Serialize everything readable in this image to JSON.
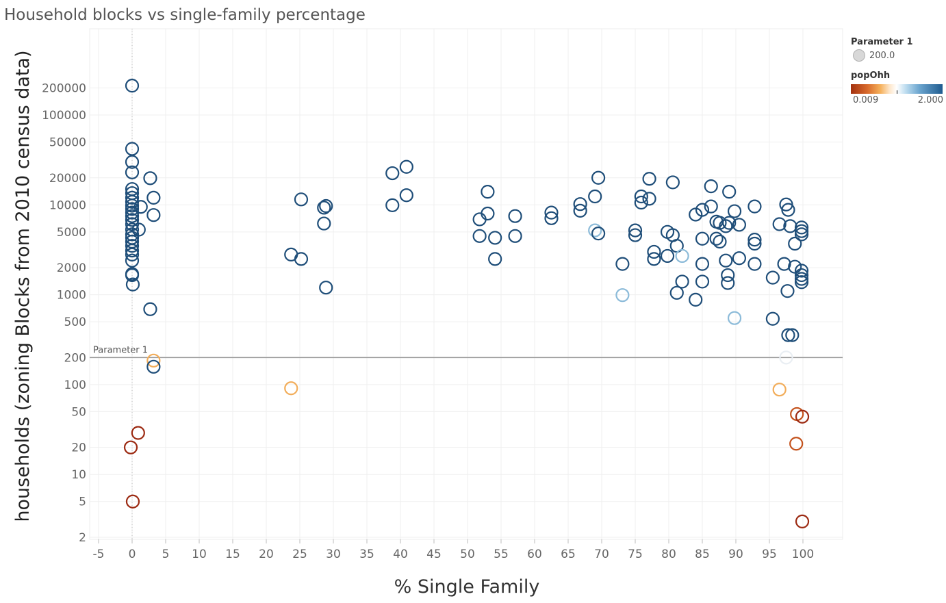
{
  "title": "Household blocks vs single-family percentage",
  "legend": {
    "size_title": "Parameter 1",
    "size_value": "200.0",
    "color_title": "popOhh",
    "color_min": "0.009",
    "color_max": "2.000"
  },
  "chart_data": {
    "type": "scatter",
    "title": "Household blocks vs single-family percentage",
    "xlabel": "% Single Family",
    "ylabel": "households (zoning Blocks from 2010 census data)",
    "xlim": [
      -6,
      105
    ],
    "ylim": [
      1.3,
      300000
    ],
    "y_scale": "log",
    "x_ticks": [
      -5,
      0,
      5,
      10,
      15,
      20,
      25,
      30,
      35,
      40,
      45,
      50,
      55,
      60,
      65,
      70,
      75,
      80,
      85,
      90,
      95,
      100
    ],
    "y_ticks": [
      2,
      5,
      10,
      20,
      50,
      100,
      200,
      500,
      1000,
      2000,
      5000,
      10000,
      20000,
      50000,
      100000,
      200000
    ],
    "grid": true,
    "reference_line": {
      "label": "Parameter 1",
      "value": 200
    },
    "zero_line": 0,
    "legend_position": "top-right",
    "color_palette": {
      "dark_blue": "#1f4e79",
      "light_blue": "#8cbbd9",
      "pale": "#e9eef3",
      "orange": "#f2ad5a",
      "dark_orange": "#c4521c",
      "dark_red": "#9c2a12"
    },
    "points": [
      {
        "x": 0,
        "y": 212000,
        "c": "dark_blue"
      },
      {
        "x": 0,
        "y": 42000,
        "c": "dark_blue"
      },
      {
        "x": 0,
        "y": 30000,
        "c": "dark_blue"
      },
      {
        "x": 0,
        "y": 23000,
        "c": "dark_blue"
      },
      {
        "x": 0,
        "y": 15000,
        "c": "dark_blue"
      },
      {
        "x": 0,
        "y": 13500,
        "c": "dark_blue"
      },
      {
        "x": 0,
        "y": 12000,
        "c": "dark_blue"
      },
      {
        "x": 0,
        "y": 10800,
        "c": "dark_blue"
      },
      {
        "x": 0,
        "y": 9800,
        "c": "dark_blue"
      },
      {
        "x": 0,
        "y": 9000,
        "c": "dark_blue"
      },
      {
        "x": 0,
        "y": 8200,
        "c": "dark_blue"
      },
      {
        "x": 0,
        "y": 7500,
        "c": "dark_blue"
      },
      {
        "x": 0,
        "y": 6800,
        "c": "dark_blue"
      },
      {
        "x": 0,
        "y": 6100,
        "c": "dark_blue"
      },
      {
        "x": 0,
        "y": 5300,
        "c": "dark_blue"
      },
      {
        "x": 0,
        "y": 4700,
        "c": "dark_blue"
      },
      {
        "x": 0,
        "y": 4300,
        "c": "dark_blue"
      },
      {
        "x": 0,
        "y": 3900,
        "c": "dark_blue"
      },
      {
        "x": 0,
        "y": 3500,
        "c": "dark_blue"
      },
      {
        "x": 0,
        "y": 3100,
        "c": "dark_blue"
      },
      {
        "x": 0,
        "y": 2800,
        "c": "dark_blue"
      },
      {
        "x": 0,
        "y": 2400,
        "c": "dark_blue"
      },
      {
        "x": 0,
        "y": 1700,
        "c": "dark_blue"
      },
      {
        "x": 0,
        "y": 1650,
        "c": "dark_blue"
      },
      {
        "x": 0.1,
        "y": 1300,
        "c": "dark_blue"
      },
      {
        "x": 1.0,
        "y": 5300,
        "c": "dark_blue"
      },
      {
        "x": 1.3,
        "y": 9500,
        "c": "dark_blue"
      },
      {
        "x": 2.7,
        "y": 19800,
        "c": "dark_blue"
      },
      {
        "x": 3.2,
        "y": 12000,
        "c": "dark_blue"
      },
      {
        "x": 3.2,
        "y": 7700,
        "c": "dark_blue"
      },
      {
        "x": 2.7,
        "y": 690,
        "c": "dark_blue"
      },
      {
        "x": 3.2,
        "y": 185,
        "c": "orange"
      },
      {
        "x": 3.2,
        "y": 158,
        "c": "dark_blue"
      },
      {
        "x": 0.9,
        "y": 29,
        "c": "dark_red"
      },
      {
        "x": -0.2,
        "y": 20,
        "c": "dark_red"
      },
      {
        "x": 0.1,
        "y": 5,
        "c": "dark_red"
      },
      {
        "x": 25.2,
        "y": 11500,
        "c": "dark_blue"
      },
      {
        "x": 23.7,
        "y": 2800,
        "c": "dark_blue"
      },
      {
        "x": 25.2,
        "y": 2500,
        "c": "dark_blue"
      },
      {
        "x": 23.7,
        "y": 91,
        "c": "orange"
      },
      {
        "x": 28.6,
        "y": 9300,
        "c": "dark_blue"
      },
      {
        "x": 28.9,
        "y": 9700,
        "c": "dark_blue"
      },
      {
        "x": 28.6,
        "y": 6200,
        "c": "dark_blue"
      },
      {
        "x": 28.9,
        "y": 1200,
        "c": "dark_blue"
      },
      {
        "x": 38.8,
        "y": 22500,
        "c": "dark_blue"
      },
      {
        "x": 40.9,
        "y": 26500,
        "c": "dark_blue"
      },
      {
        "x": 38.8,
        "y": 9900,
        "c": "dark_blue"
      },
      {
        "x": 40.9,
        "y": 12800,
        "c": "dark_blue"
      },
      {
        "x": 53.0,
        "y": 14000,
        "c": "dark_blue"
      },
      {
        "x": 53.0,
        "y": 8000,
        "c": "dark_blue"
      },
      {
        "x": 51.8,
        "y": 6900,
        "c": "dark_blue"
      },
      {
        "x": 51.8,
        "y": 4500,
        "c": "dark_blue"
      },
      {
        "x": 54.1,
        "y": 4300,
        "c": "dark_blue"
      },
      {
        "x": 54.1,
        "y": 2500,
        "c": "dark_blue"
      },
      {
        "x": 57.1,
        "y": 7500,
        "c": "dark_blue"
      },
      {
        "x": 57.1,
        "y": 4500,
        "c": "dark_blue"
      },
      {
        "x": 62.5,
        "y": 8200,
        "c": "dark_blue"
      },
      {
        "x": 62.5,
        "y": 7100,
        "c": "dark_blue"
      },
      {
        "x": 66.8,
        "y": 10200,
        "c": "dark_blue"
      },
      {
        "x": 66.8,
        "y": 8600,
        "c": "dark_blue"
      },
      {
        "x": 69.0,
        "y": 12400,
        "c": "dark_blue"
      },
      {
        "x": 69.5,
        "y": 20000,
        "c": "dark_blue"
      },
      {
        "x": 69.0,
        "y": 5200,
        "c": "light_blue"
      },
      {
        "x": 69.5,
        "y": 4800,
        "c": "dark_blue"
      },
      {
        "x": 73.1,
        "y": 2200,
        "c": "dark_blue"
      },
      {
        "x": 73.1,
        "y": 990,
        "c": "light_blue"
      },
      {
        "x": 75.0,
        "y": 5200,
        "c": "dark_blue"
      },
      {
        "x": 75.0,
        "y": 4600,
        "c": "dark_blue"
      },
      {
        "x": 75.9,
        "y": 12400,
        "c": "dark_blue"
      },
      {
        "x": 75.9,
        "y": 10600,
        "c": "dark_blue"
      },
      {
        "x": 77.1,
        "y": 19500,
        "c": "dark_blue"
      },
      {
        "x": 77.1,
        "y": 11700,
        "c": "dark_blue"
      },
      {
        "x": 77.8,
        "y": 3000,
        "c": "dark_blue"
      },
      {
        "x": 77.8,
        "y": 2500,
        "c": "dark_blue"
      },
      {
        "x": 79.8,
        "y": 5000,
        "c": "dark_blue"
      },
      {
        "x": 79.8,
        "y": 2700,
        "c": "dark_blue"
      },
      {
        "x": 80.6,
        "y": 17800,
        "c": "dark_blue"
      },
      {
        "x": 80.6,
        "y": 4600,
        "c": "dark_blue"
      },
      {
        "x": 81.2,
        "y": 3500,
        "c": "dark_blue"
      },
      {
        "x": 81.2,
        "y": 1050,
        "c": "dark_blue"
      },
      {
        "x": 82.0,
        "y": 2700,
        "c": "light_blue"
      },
      {
        "x": 82.0,
        "y": 1400,
        "c": "dark_blue"
      },
      {
        "x": 84.0,
        "y": 7800,
        "c": "dark_blue"
      },
      {
        "x": 84.0,
        "y": 880,
        "c": "dark_blue"
      },
      {
        "x": 85.0,
        "y": 8800,
        "c": "dark_blue"
      },
      {
        "x": 85.0,
        "y": 4200,
        "c": "dark_blue"
      },
      {
        "x": 85.0,
        "y": 2200,
        "c": "dark_blue"
      },
      {
        "x": 85.0,
        "y": 1400,
        "c": "dark_blue"
      },
      {
        "x": 86.3,
        "y": 16100,
        "c": "dark_blue"
      },
      {
        "x": 86.3,
        "y": 9600,
        "c": "dark_blue"
      },
      {
        "x": 87.1,
        "y": 6500,
        "c": "dark_blue"
      },
      {
        "x": 87.1,
        "y": 4200,
        "c": "dark_blue"
      },
      {
        "x": 87.6,
        "y": 6300,
        "c": "dark_blue"
      },
      {
        "x": 87.6,
        "y": 3900,
        "c": "dark_blue"
      },
      {
        "x": 88.5,
        "y": 5800,
        "c": "dark_blue"
      },
      {
        "x": 88.5,
        "y": 2400,
        "c": "dark_blue"
      },
      {
        "x": 89.0,
        "y": 14000,
        "c": "dark_blue"
      },
      {
        "x": 89.0,
        "y": 6300,
        "c": "dark_blue"
      },
      {
        "x": 88.8,
        "y": 1650,
        "c": "dark_blue"
      },
      {
        "x": 88.8,
        "y": 1350,
        "c": "dark_blue"
      },
      {
        "x": 89.8,
        "y": 8500,
        "c": "dark_blue"
      },
      {
        "x": 89.8,
        "y": 550,
        "c": "light_blue"
      },
      {
        "x": 90.5,
        "y": 6000,
        "c": "dark_blue"
      },
      {
        "x": 90.5,
        "y": 2550,
        "c": "dark_blue"
      },
      {
        "x": 92.8,
        "y": 9600,
        "c": "dark_blue"
      },
      {
        "x": 92.8,
        "y": 4100,
        "c": "dark_blue"
      },
      {
        "x": 92.8,
        "y": 3700,
        "c": "dark_blue"
      },
      {
        "x": 92.8,
        "y": 2200,
        "c": "dark_blue"
      },
      {
        "x": 95.5,
        "y": 1550,
        "c": "dark_blue"
      },
      {
        "x": 95.5,
        "y": 540,
        "c": "dark_blue"
      },
      {
        "x": 96.5,
        "y": 6100,
        "c": "dark_blue"
      },
      {
        "x": 96.5,
        "y": 88,
        "c": "orange"
      },
      {
        "x": 97.5,
        "y": 10100,
        "c": "dark_blue"
      },
      {
        "x": 97.8,
        "y": 8800,
        "c": "dark_blue"
      },
      {
        "x": 98.1,
        "y": 5800,
        "c": "dark_blue"
      },
      {
        "x": 97.2,
        "y": 2200,
        "c": "dark_blue"
      },
      {
        "x": 97.7,
        "y": 1100,
        "c": "dark_blue"
      },
      {
        "x": 97.8,
        "y": 355,
        "c": "dark_blue"
      },
      {
        "x": 98.4,
        "y": 355,
        "c": "dark_blue"
      },
      {
        "x": 97.5,
        "y": 200,
        "c": "pale"
      },
      {
        "x": 98.8,
        "y": 2050,
        "c": "dark_blue"
      },
      {
        "x": 98.8,
        "y": 3700,
        "c": "dark_blue"
      },
      {
        "x": 99.8,
        "y": 5600,
        "c": "dark_blue"
      },
      {
        "x": 99.8,
        "y": 5100,
        "c": "dark_blue"
      },
      {
        "x": 99.8,
        "y": 4700,
        "c": "dark_blue"
      },
      {
        "x": 99.8,
        "y": 1850,
        "c": "dark_blue"
      },
      {
        "x": 99.8,
        "y": 1650,
        "c": "dark_blue"
      },
      {
        "x": 99.8,
        "y": 1500,
        "c": "dark_blue"
      },
      {
        "x": 99.8,
        "y": 1380,
        "c": "dark_blue"
      },
      {
        "x": 99.1,
        "y": 47,
        "c": "dark_orange"
      },
      {
        "x": 99.9,
        "y": 44,
        "c": "dark_red"
      },
      {
        "x": 99.0,
        "y": 22,
        "c": "dark_orange"
      },
      {
        "x": 99.9,
        "y": 3,
        "c": "dark_red"
      }
    ]
  }
}
